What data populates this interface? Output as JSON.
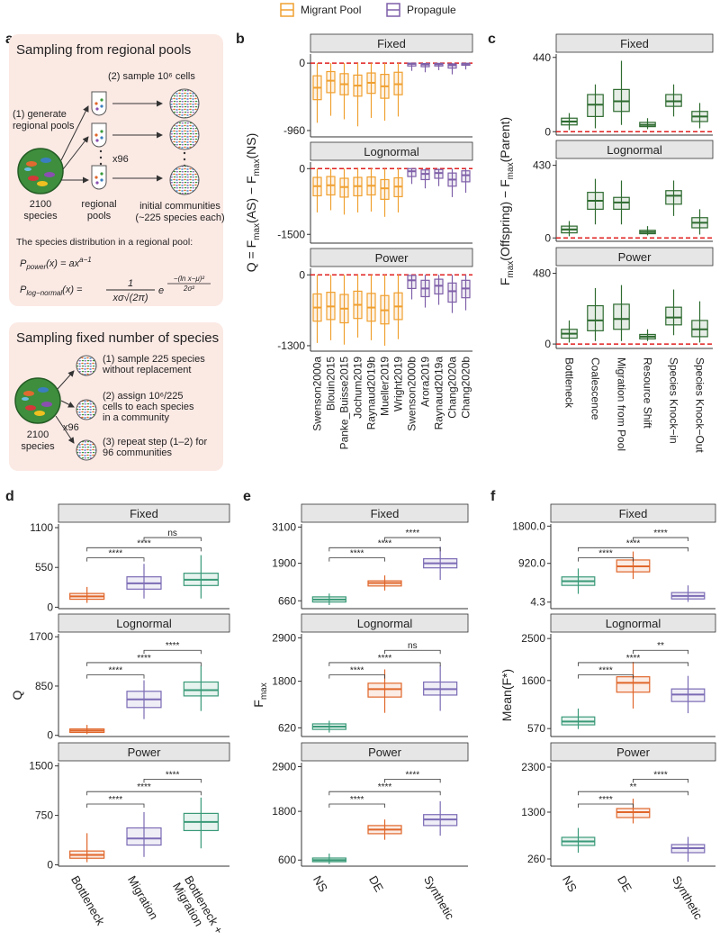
{
  "diagram": {
    "panel": "a",
    "pool_box": {
      "title": "Sampling from regional pools",
      "step2": "(2) sample 10⁶ cells",
      "step1_line1": "(1) generate",
      "step1_line2": "regional pools",
      "species_count": "2100",
      "species_word": "species",
      "times": "x96",
      "pools_line1": "regional",
      "pools_line2": "pools",
      "communities_line1": "initial communities",
      "communities_line2": "(~225 species each)",
      "distribution_intro": "The species distribution in a regional pool:",
      "formula_power": [
        "P",
        "power",
        "(x) = ax",
        "a−1"
      ],
      "formula_lognormal": [
        "P",
        "log−normal",
        "(x) =",
        "1",
        "xσ√(2π)",
        "e",
        "−(ln x−μ)²",
        "2σ²"
      ]
    },
    "fixed_box": {
      "title": "Sampling fixed number of species",
      "species_count": "2100",
      "species_word": "species",
      "times": "x96",
      "step1": [
        "(1) sample 225 species",
        "without replacement"
      ],
      "step2": [
        "(2) assign 10⁶/225",
        "cells to each species",
        "in a community"
      ],
      "step3": [
        "(3) repeat step (1–2) for",
        "96 communities"
      ]
    }
  },
  "chart_data": [
    {
      "type": "box",
      "panel": "b",
      "ylabel_parts": [
        "Q = F",
        "max",
        "(AS) − F",
        "max",
        "(NS)"
      ],
      "reference_line": 0,
      "series": [
        {
          "name": "Migrant Pool",
          "color": "#f0a030"
        },
        {
          "name": "Propagule",
          "color": "#7e5fa8"
        }
      ],
      "category_series": [
        0,
        0,
        0,
        0,
        0,
        0,
        0,
        1,
        1,
        1,
        1,
        1
      ],
      "categories": [
        "Swenson2000a",
        "Blouin2015",
        "Panke_Buisse2015",
        "Jochum2019",
        "Raynaud2019b",
        "Mueller2019",
        "Wright2019",
        "Swenson2000b",
        "Arora2019",
        "Raynaud2019a",
        "Chang2020a",
        "Chang2020b"
      ],
      "facets": [
        {
          "title": "Fixed",
          "ylim": [
            -1050,
            130
          ],
          "yticks": [
            -960,
            0
          ],
          "min": [
            -850,
            -750,
            -800,
            -900,
            -780,
            -820,
            -760,
            -110,
            -130,
            -100,
            -160,
            -90
          ],
          "q1": [
            -520,
            -420,
            -450,
            -470,
            -430,
            -500,
            -450,
            -40,
            -50,
            -40,
            -70,
            -30
          ],
          "median": [
            -350,
            -250,
            -300,
            -320,
            -280,
            -330,
            -300,
            -10,
            -20,
            -15,
            -30,
            -10
          ],
          "q3": [
            -180,
            -120,
            -150,
            -170,
            -140,
            -160,
            -130,
            0,
            -5,
            -3,
            -10,
            -2
          ],
          "max": [
            0,
            0,
            0,
            0,
            0,
            0,
            0,
            0,
            0,
            0,
            0,
            0
          ]
        },
        {
          "title": "Lognormal",
          "ylim": [
            -1700,
            150
          ],
          "yticks": [
            -1500,
            0
          ],
          "min": [
            -1000,
            -950,
            -1050,
            -1000,
            -980,
            -1100,
            -1000,
            -350,
            -450,
            -400,
            -650,
            -550
          ],
          "q1": [
            -620,
            -600,
            -650,
            -620,
            -600,
            -700,
            -640,
            -180,
            -250,
            -220,
            -400,
            -300
          ],
          "median": [
            -400,
            -380,
            -420,
            -400,
            -390,
            -450,
            -410,
            -60,
            -120,
            -100,
            -250,
            -150
          ],
          "q3": [
            -200,
            -180,
            -220,
            -200,
            -190,
            -250,
            -210,
            0,
            -30,
            -20,
            -100,
            -50
          ],
          "max": [
            0,
            0,
            0,
            0,
            0,
            0,
            0,
            0,
            0,
            0,
            0,
            0
          ]
        },
        {
          "title": "Power",
          "ylim": [
            -1400,
            120
          ],
          "yticks": [
            -1300,
            0
          ],
          "min": [
            -1250,
            -1200,
            -1280,
            -1150,
            -1200,
            -1300,
            -1180,
            -450,
            -600,
            -550,
            -700,
            -650
          ],
          "q1": [
            -850,
            -820,
            -880,
            -800,
            -850,
            -900,
            -820,
            -250,
            -400,
            -350,
            -500,
            -420
          ],
          "median": [
            -600,
            -580,
            -620,
            -550,
            -600,
            -650,
            -580,
            -100,
            -250,
            -200,
            -300,
            -250
          ],
          "q3": [
            -350,
            -320,
            -360,
            -300,
            -340,
            -380,
            -330,
            -10,
            -100,
            -80,
            -150,
            -100
          ],
          "max": [
            0,
            0,
            0,
            0,
            0,
            0,
            0,
            0,
            0,
            0,
            0,
            0
          ]
        }
      ]
    },
    {
      "type": "box",
      "panel": "c",
      "ylabel_parts": [
        "F",
        "max",
        "(Offspring) − F",
        "max",
        "(Parent)"
      ],
      "reference_line": 0,
      "color": "#2e6b30",
      "categories": [
        "Bottleneck",
        "Coalescence",
        "Migration from Pool",
        "Resource Shift",
        "Species Knock−in",
        "Species Knock−Out"
      ],
      "facets": [
        {
          "title": "Fixed",
          "ylim": [
            -20,
            460
          ],
          "yticks": [
            0,
            440
          ],
          "min": [
            10,
            20,
            40,
            15,
            90,
            20
          ],
          "q1": [
            40,
            90,
            120,
            30,
            150,
            60
          ],
          "median": [
            60,
            160,
            180,
            40,
            180,
            90
          ],
          "q3": [
            80,
            220,
            250,
            55,
            220,
            120
          ],
          "max": [
            110,
            280,
            420,
            80,
            280,
            170
          ]
        },
        {
          "title": "Lognormal",
          "ylim": [
            -20,
            460
          ],
          "yticks": [
            0,
            430
          ],
          "min": [
            10,
            80,
            80,
            15,
            130,
            20
          ],
          "q1": [
            30,
            170,
            170,
            25,
            200,
            60
          ],
          "median": [
            50,
            220,
            210,
            35,
            250,
            90
          ],
          "q3": [
            70,
            270,
            240,
            45,
            280,
            120
          ],
          "max": [
            100,
            350,
            340,
            70,
            340,
            170
          ]
        },
        {
          "title": "Power",
          "ylim": [
            -30,
            520
          ],
          "yticks": [
            0,
            480
          ],
          "min": [
            10,
            20,
            20,
            20,
            60,
            10
          ],
          "q1": [
            40,
            90,
            100,
            35,
            130,
            50
          ],
          "median": [
            70,
            160,
            170,
            50,
            180,
            100
          ],
          "q3": [
            100,
            260,
            270,
            65,
            250,
            160
          ],
          "max": [
            160,
            380,
            400,
            100,
            370,
            290
          ]
        }
      ]
    },
    {
      "type": "box",
      "panel": "d",
      "ylabel_parts": [
        "Q"
      ],
      "categories": [
        "Bottleneck",
        "Migration",
        "Bottleneck + Migration"
      ],
      "colors": [
        "#e0662a",
        "#7b6bb5",
        "#3a9a78"
      ],
      "facets": [
        {
          "title": "Fixed",
          "ylim": [
            -20,
            1150
          ],
          "yticks": [
            0,
            550,
            1100
          ],
          "min": [
            60,
            120,
            120
          ],
          "q1": [
            110,
            250,
            300
          ],
          "median": [
            150,
            330,
            380
          ],
          "q3": [
            190,
            420,
            470
          ],
          "max": [
            280,
            600,
            720
          ],
          "brackets": [
            {
              "from": 0,
              "to": 1,
              "label": "****"
            },
            {
              "from": 0,
              "to": 2,
              "label": "****"
            },
            {
              "from": 1,
              "to": 2,
              "label": "ns"
            }
          ]
        },
        {
          "title": "Lognormal",
          "ylim": [
            -20,
            1750
          ],
          "yticks": [
            0,
            850,
            1700
          ],
          "min": [
            20,
            280,
            420
          ],
          "q1": [
            50,
            480,
            680
          ],
          "median": [
            80,
            620,
            780
          ],
          "q3": [
            110,
            760,
            920
          ],
          "max": [
            180,
            950,
            1200
          ],
          "brackets": [
            {
              "from": 0,
              "to": 1,
              "label": "****"
            },
            {
              "from": 0,
              "to": 2,
              "label": "****"
            },
            {
              "from": 1,
              "to": 2,
              "label": "****"
            }
          ]
        },
        {
          "title": "Power",
          "ylim": [
            -20,
            1550
          ],
          "yticks": [
            0,
            750,
            1500
          ],
          "min": [
            40,
            120,
            250
          ],
          "q1": [
            100,
            300,
            520
          ],
          "median": [
            150,
            400,
            650
          ],
          "q3": [
            210,
            560,
            780
          ],
          "max": [
            480,
            800,
            1020
          ],
          "brackets": [
            {
              "from": 0,
              "to": 1,
              "label": "****"
            },
            {
              "from": 0,
              "to": 2,
              "label": "****"
            },
            {
              "from": 1,
              "to": 2,
              "label": "****"
            }
          ]
        }
      ]
    },
    {
      "type": "box",
      "panel": "e",
      "ylabel_parts": [
        "F",
        "max"
      ],
      "categories": [
        "NS",
        "DE",
        "Synthetic"
      ],
      "colors": [
        "#3a9a78",
        "#e0662a",
        "#7b6bb5"
      ],
      "facets": [
        {
          "title": "Fixed",
          "ylim": [
            400,
            3200
          ],
          "yticks": [
            660,
            1900,
            3100
          ],
          "min": [
            520,
            1000,
            1350
          ],
          "q1": [
            620,
            1150,
            1750
          ],
          "median": [
            700,
            1250,
            1900
          ],
          "q3": [
            790,
            1320,
            2050
          ],
          "max": [
            900,
            1500,
            2450
          ],
          "brackets": [
            {
              "from": 0,
              "to": 1,
              "label": "****"
            },
            {
              "from": 0,
              "to": 2,
              "label": "****"
            },
            {
              "from": 1,
              "to": 2,
              "label": "****"
            }
          ]
        },
        {
          "title": "Lognormal",
          "ylim": [
            400,
            3000
          ],
          "yticks": [
            620,
            1800,
            2900
          ],
          "min": [
            500,
            1000,
            1050
          ],
          "q1": [
            580,
            1400,
            1450
          ],
          "median": [
            650,
            1600,
            1600
          ],
          "q3": [
            720,
            1750,
            1780
          ],
          "max": [
            800,
            2100,
            2200
          ],
          "brackets": [
            {
              "from": 0,
              "to": 1,
              "label": "****"
            },
            {
              "from": 0,
              "to": 2,
              "label": "****"
            },
            {
              "from": 1,
              "to": 2,
              "label": "ns"
            }
          ]
        },
        {
          "title": "Power",
          "ylim": [
            450,
            3000
          ],
          "yticks": [
            600,
            1800,
            2900
          ],
          "min": [
            500,
            1100,
            1200
          ],
          "q1": [
            560,
            1250,
            1450
          ],
          "median": [
            600,
            1350,
            1600
          ],
          "q3": [
            650,
            1450,
            1720
          ],
          "max": [
            760,
            1600,
            2050
          ],
          "brackets": [
            {
              "from": 0,
              "to": 1,
              "label": "****"
            },
            {
              "from": 0,
              "to": 2,
              "label": "****"
            },
            {
              "from": 1,
              "to": 2,
              "label": "****"
            }
          ]
        }
      ]
    },
    {
      "type": "box",
      "panel": "f",
      "ylabel_parts": [
        "Mean(F*)"
      ],
      "categories": [
        "NS",
        "DE",
        "Synthetic"
      ],
      "colors": [
        "#3a9a78",
        "#e0662a",
        "#7b6bb5"
      ],
      "facets": [
        {
          "title": "Fixed",
          "ylim": [
            -150,
            1850
          ],
          "yticks": [
            {
              "value": 4.3,
              "label": "4.3"
            },
            {
              "value": 920,
              "label": "920.0"
            },
            {
              "value": 1800,
              "label": "1800.0"
            }
          ],
          "min": [
            200,
            550,
            10
          ],
          "q1": [
            400,
            720,
            80
          ],
          "median": [
            500,
            850,
            150
          ],
          "q3": [
            600,
            1000,
            230
          ],
          "max": [
            800,
            1200,
            400
          ],
          "brackets": [
            {
              "from": 0,
              "to": 1,
              "label": "****"
            },
            {
              "from": 0,
              "to": 2,
              "label": "****"
            },
            {
              "from": 1,
              "to": 2,
              "label": "****"
            }
          ]
        },
        {
          "title": "Lognormal",
          "ylim": [
            400,
            2600
          ],
          "yticks": [
            570,
            1600,
            2500
          ],
          "min": [
            560,
            1000,
            900
          ],
          "q1": [
            650,
            1350,
            1150
          ],
          "median": [
            720,
            1550,
            1300
          ],
          "q3": [
            820,
            1680,
            1420
          ],
          "max": [
            1000,
            2000,
            1700
          ],
          "brackets": [
            {
              "from": 0,
              "to": 1,
              "label": "****"
            },
            {
              "from": 0,
              "to": 2,
              "label": "****"
            },
            {
              "from": 1,
              "to": 2,
              "label": "**"
            }
          ]
        },
        {
          "title": "Power",
          "ylim": [
            100,
            2400
          ],
          "yticks": [
            260,
            1300,
            2300
          ],
          "min": [
            400,
            1050,
            200
          ],
          "q1": [
            560,
            1180,
            400
          ],
          "median": [
            650,
            1300,
            500
          ],
          "q3": [
            740,
            1380,
            580
          ],
          "max": [
            950,
            1600,
            750
          ],
          "brackets": [
            {
              "from": 0,
              "to": 1,
              "label": "****"
            },
            {
              "from": 0,
              "to": 2,
              "label": "**"
            },
            {
              "from": 1,
              "to": 2,
              "label": "****"
            }
          ]
        }
      ]
    }
  ]
}
